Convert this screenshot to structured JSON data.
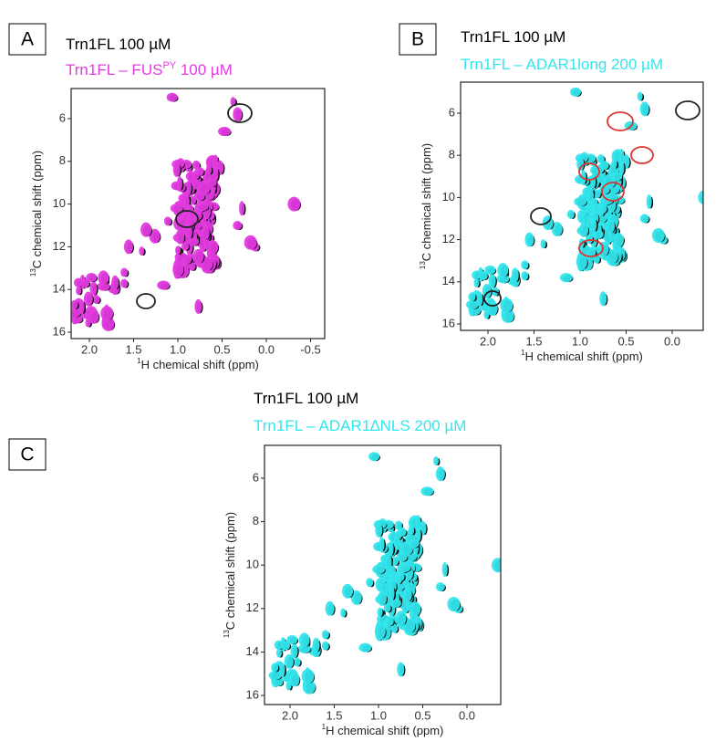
{
  "panels": [
    {
      "label": "A",
      "legend": [
        {
          "text": "Trn1FL 100 µM"
        },
        {
          "text": "Trn1FL – FUS",
          "sup": "PY",
          "suffix": " 100 µM"
        }
      ],
      "x_axis": {
        "sup": "1",
        "title": "H chemical shift (ppm)",
        "ticks": [
          "2.0",
          "1.5",
          "1.0",
          "0.5",
          "0.0",
          "-0.5"
        ]
      },
      "y_axis": {
        "sup": "13",
        "title": "C chemical shift (ppm)",
        "ticks": [
          "6",
          "8",
          "10",
          "12",
          "14",
          "16"
        ]
      }
    },
    {
      "label": "B",
      "legend": [
        {
          "text": "Trn1FL 100 µM"
        },
        {
          "text": "Trn1FL – ADAR1long 200 µM"
        }
      ],
      "x_axis": {
        "sup": "1",
        "title": "H chemical shift (ppm)",
        "ticks": [
          "2.0",
          "1.5",
          "1.0",
          "0.5",
          "0.0"
        ]
      },
      "y_axis": {
        "sup": "13",
        "title": "C chemical shift (ppm)",
        "ticks": [
          "6",
          "8",
          "10",
          "12",
          "14",
          "16"
        ]
      }
    },
    {
      "label": "C",
      "legend": [
        {
          "text": "Trn1FL 100 µM"
        },
        {
          "text": "Trn1FL – ADAR1∆NLS 200 µM"
        }
      ],
      "x_axis": {
        "sup": "1",
        "title": "H chemical shift (ppm)",
        "ticks": [
          "2.0",
          "1.5",
          "1.0",
          "0.5",
          "0.0"
        ]
      },
      "y_axis": {
        "sup": "13",
        "title": "C chemical shift (ppm)",
        "ticks": [
          "6",
          "8",
          "10",
          "12",
          "14",
          "16"
        ]
      }
    }
  ]
}
